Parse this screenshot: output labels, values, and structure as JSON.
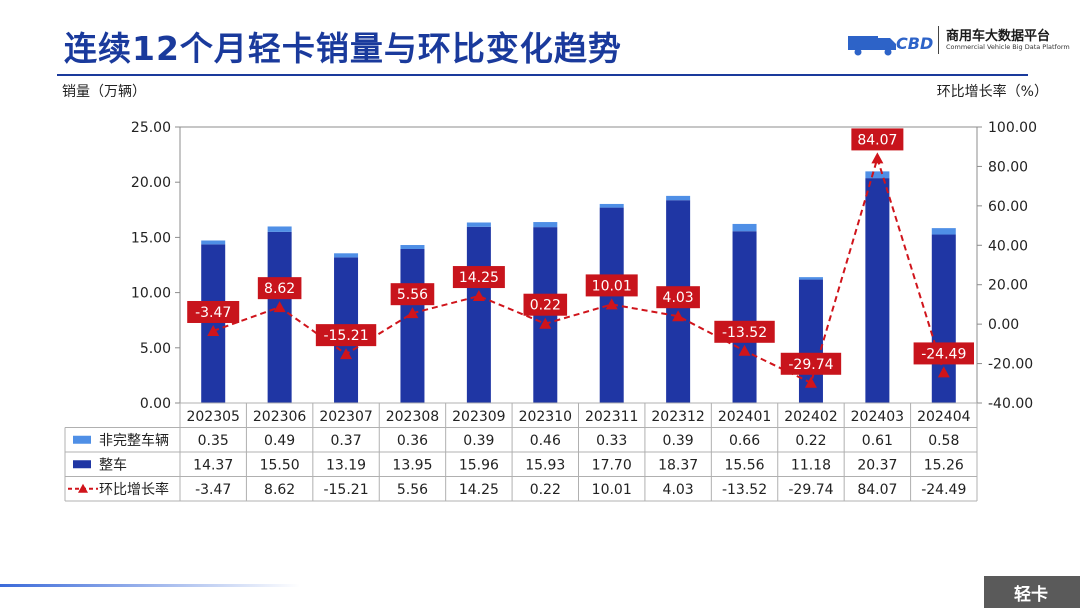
{
  "header": {
    "title": "连续12个月轻卡销量与环比变化趋势",
    "logo_name": "商用车大数据平台",
    "logo_sub": "Commercial Vehicle Big Data Platform"
  },
  "footer_tag": "轻卡",
  "colors": {
    "bar_top": "#4f8fe6",
    "bar_main": "#1f36a4",
    "line": "#d0141b",
    "title": "#1a3a9c"
  },
  "chart_data": {
    "type": "bar",
    "categories": [
      "202305",
      "202306",
      "202307",
      "202308",
      "202309",
      "202310",
      "202311",
      "202312",
      "202401",
      "202402",
      "202403",
      "202404"
    ],
    "ylabel_left": "销量（万辆）",
    "ylabel_right": "环比增长率（%）",
    "ylim_left": [
      0,
      25
    ],
    "ylim_right": [
      -40,
      100
    ],
    "yticks_left": [
      "0.00",
      "5.00",
      "10.00",
      "15.00",
      "20.00",
      "25.00"
    ],
    "yticks_right": [
      "-40.00",
      "-20.00",
      "0.00",
      "20.00",
      "40.00",
      "60.00",
      "80.00",
      "100.00"
    ],
    "grid": false,
    "series": [
      {
        "name": "非完整车辆",
        "kind": "bar-stack-top",
        "values": [
          0.35,
          0.49,
          0.37,
          0.36,
          0.39,
          0.46,
          0.33,
          0.39,
          0.66,
          0.22,
          0.61,
          0.58
        ]
      },
      {
        "name": "整车",
        "kind": "bar-stack-base",
        "values": [
          14.37,
          15.5,
          13.19,
          13.95,
          15.96,
          15.93,
          17.7,
          18.37,
          15.56,
          11.18,
          20.37,
          15.26
        ]
      },
      {
        "name": "环比增长率",
        "kind": "line-right-axis",
        "values": [
          -3.47,
          8.62,
          -15.21,
          5.56,
          14.25,
          0.22,
          10.01,
          4.03,
          -13.52,
          -29.74,
          84.07,
          -24.49
        ]
      }
    ],
    "table": {
      "rows": [
        {
          "label": "非完整车辆",
          "cells": [
            "0.35",
            "0.49",
            "0.37",
            "0.36",
            "0.39",
            "0.46",
            "0.33",
            "0.39",
            "0.66",
            "0.22",
            "0.61",
            "0.58"
          ]
        },
        {
          "label": "整车",
          "cells": [
            "14.37",
            "15.50",
            "13.19",
            "13.95",
            "15.96",
            "15.93",
            "17.70",
            "18.37",
            "15.56",
            "11.18",
            "20.37",
            "15.26"
          ]
        },
        {
          "label": "环比增长率",
          "cells": [
            "-3.47",
            "8.62",
            "-15.21",
            "5.56",
            "14.25",
            "0.22",
            "10.01",
            "4.03",
            "-13.52",
            "-29.74",
            "84.07",
            "-24.49"
          ]
        }
      ]
    },
    "line_labels": [
      "-3.47",
      "8.62",
      "-15.21",
      "5.56",
      "14.25",
      "0.22",
      "10.01",
      "4.03",
      "-13.52",
      "-29.74",
      "84.07",
      "-24.49"
    ]
  }
}
